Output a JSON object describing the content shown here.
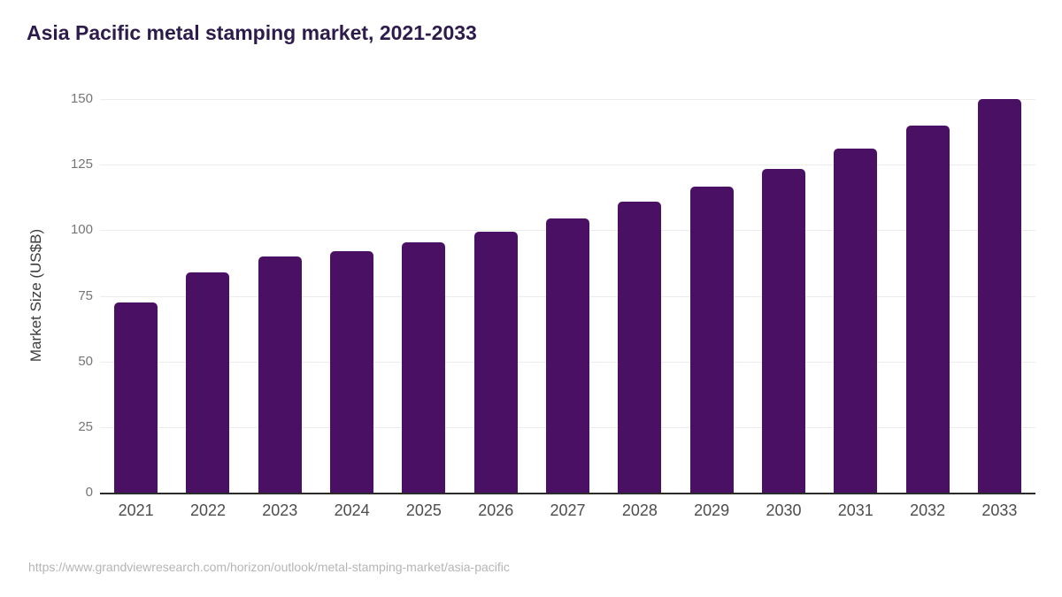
{
  "page": {
    "footer_url": "https://www.grandviewresearch.com/horizon/outlook/metal-stamping-market/asia-pacific"
  },
  "chart_data": {
    "type": "bar",
    "title": "Asia Pacific metal stamping market, 2021-2033",
    "categories": [
      "2021",
      "2022",
      "2023",
      "2024",
      "2025",
      "2026",
      "2027",
      "2028",
      "2029",
      "2030",
      "2031",
      "2032",
      "2033"
    ],
    "values": [
      72.5,
      84,
      90,
      92,
      95.5,
      99.5,
      104.5,
      111,
      116.5,
      123.5,
      131,
      140,
      150
    ],
    "xlabel": "",
    "ylabel": "Market Size (US$B)",
    "ylim": [
      0,
      150
    ],
    "yticks": [
      0,
      25,
      50,
      75,
      100,
      125,
      150
    ],
    "grid": true,
    "legend": false,
    "bar_color": "#4a1063"
  },
  "colors": {
    "bar": "#4a1063",
    "title_text": "#2d1b4b",
    "axis_line": "#2b2b2b",
    "gridline": "#ececec",
    "y_tick_text": "#757575",
    "x_tick_text": "#4d4d4d",
    "y_axis_title_text": "#3c3c3c",
    "footer_text": "#b5b5b5",
    "background": "#ffffff"
  }
}
